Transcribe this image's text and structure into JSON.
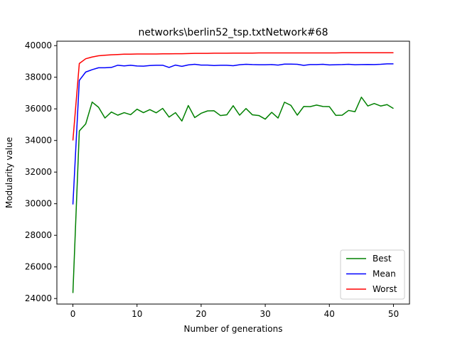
{
  "chart_data": {
    "type": "line",
    "title": "networks\\berlin52_tsp.txtNetwork#68",
    "xlabel": "Number of generations",
    "ylabel": "Modularity value",
    "xlim": [
      -2.5,
      52.5
    ],
    "ylim": [
      23650,
      40280
    ],
    "xticks": [
      0,
      10,
      20,
      30,
      40,
      50
    ],
    "yticks": [
      24000,
      26000,
      28000,
      30000,
      32000,
      34000,
      36000,
      38000,
      40000
    ],
    "grid": false,
    "legend_position": "lower-right",
    "x": [
      0,
      1,
      2,
      3,
      4,
      5,
      6,
      7,
      8,
      9,
      10,
      11,
      12,
      13,
      14,
      15,
      16,
      17,
      18,
      19,
      20,
      21,
      22,
      23,
      24,
      25,
      26,
      27,
      28,
      29,
      30,
      31,
      32,
      33,
      34,
      35,
      36,
      37,
      38,
      39,
      40,
      41,
      42,
      43,
      44,
      45,
      46,
      47,
      48,
      49,
      50
    ],
    "series": [
      {
        "name": "Best",
        "color": "#008000",
        "values": [
          24350,
          34600,
          35050,
          36430,
          36100,
          35420,
          35800,
          35600,
          35760,
          35630,
          35980,
          35760,
          35950,
          35750,
          36030,
          35480,
          35760,
          35230,
          36210,
          35450,
          35720,
          35870,
          35880,
          35580,
          35620,
          36200,
          35600,
          36020,
          35620,
          35580,
          35350,
          35780,
          35420,
          36420,
          36220,
          35600,
          36150,
          36140,
          36240,
          36150,
          36140,
          35590,
          35600,
          35900,
          35820,
          36740,
          36180,
          36340,
          36180,
          36270,
          36020
        ]
      },
      {
        "name": "Mean",
        "color": "#0000ff",
        "values": [
          29950,
          37800,
          38330,
          38480,
          38600,
          38600,
          38620,
          38760,
          38720,
          38760,
          38710,
          38700,
          38740,
          38760,
          38760,
          38620,
          38770,
          38690,
          38780,
          38820,
          38770,
          38770,
          38740,
          38760,
          38760,
          38730,
          38790,
          38820,
          38800,
          38790,
          38790,
          38800,
          38770,
          38830,
          38830,
          38820,
          38750,
          38800,
          38800,
          38820,
          38780,
          38790,
          38800,
          38820,
          38790,
          38800,
          38810,
          38800,
          38820,
          38850,
          38850
        ]
      },
      {
        "name": "Worst",
        "color": "#ff0000",
        "values": [
          34000,
          38870,
          39170,
          39280,
          39360,
          39390,
          39420,
          39440,
          39460,
          39460,
          39470,
          39470,
          39470,
          39470,
          39480,
          39480,
          39490,
          39490,
          39500,
          39510,
          39510,
          39510,
          39520,
          39520,
          39520,
          39530,
          39530,
          39530,
          39530,
          39540,
          39540,
          39540,
          39540,
          39540,
          39540,
          39540,
          39540,
          39540,
          39540,
          39540,
          39540,
          39540,
          39550,
          39550,
          39550,
          39550,
          39550,
          39550,
          39550,
          39550,
          39550
        ]
      }
    ]
  }
}
